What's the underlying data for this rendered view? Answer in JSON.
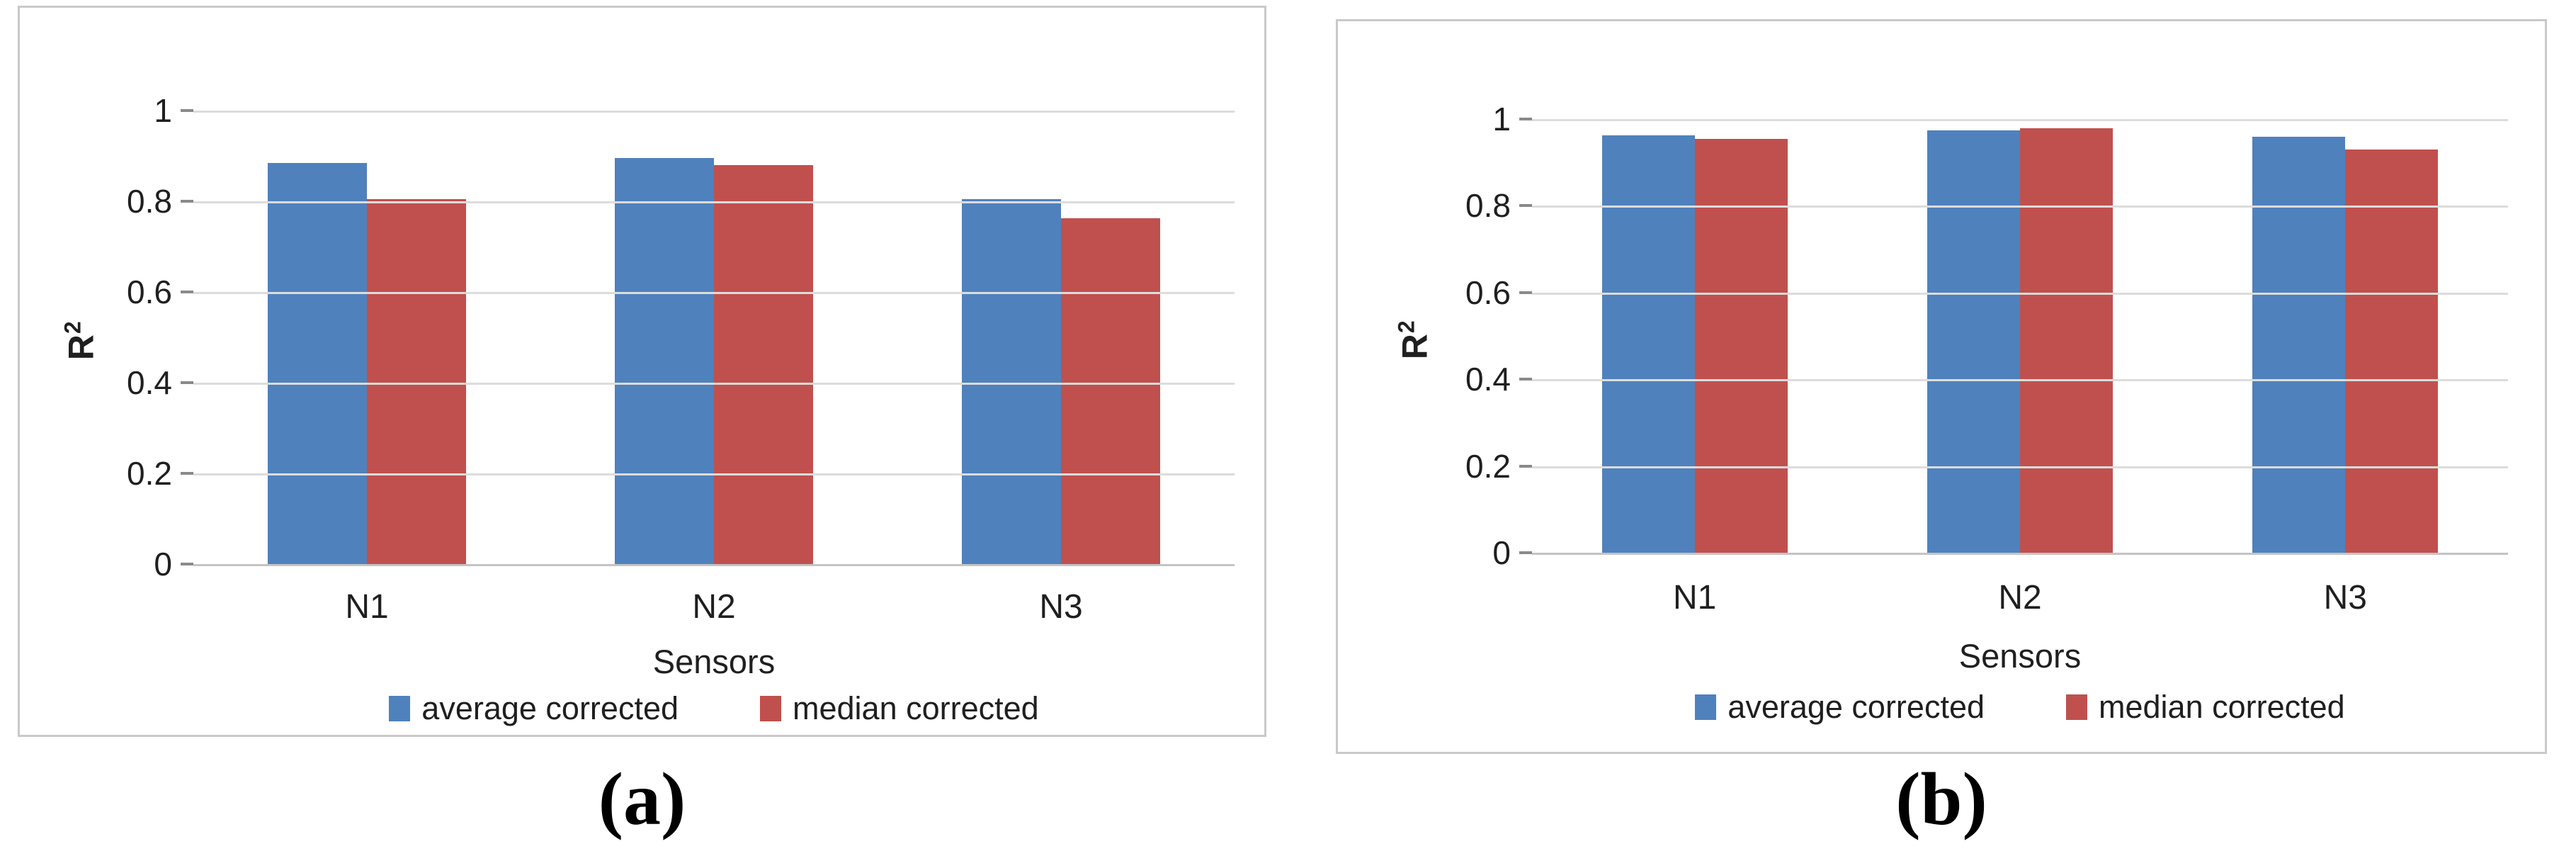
{
  "figure": {
    "captions": [
      "(a)",
      "(b)"
    ]
  },
  "colors": {
    "series_blue": "#4F81BD",
    "series_red": "#C0504D",
    "gridline": "#DCDCDC",
    "axis_line": "#C4C4C4",
    "panel_border": "#C9C9C9",
    "text": "#1F1F1F"
  },
  "chart_data": [
    {
      "type": "bar",
      "panel": "a",
      "title": "",
      "xlabel": "Sensors",
      "ylabel": "R²",
      "ylabel_base": "R",
      "ylabel_sup": "2",
      "ylim": [
        0,
        1
      ],
      "grid": true,
      "legend_position": "bottom",
      "y_ticks": [
        "1",
        "0.8",
        "0.6",
        "0.4",
        "0.2",
        "0"
      ],
      "categories": [
        "N1",
        "N2",
        "N3"
      ],
      "series": [
        {
          "name": "average corrected",
          "color": "#4F81BD",
          "values": [
            0.885,
            0.895,
            0.805
          ]
        },
        {
          "name": "median corrected",
          "color": "#C0504D",
          "values": [
            0.805,
            0.88,
            0.762
          ]
        }
      ]
    },
    {
      "type": "bar",
      "panel": "b",
      "title": "",
      "xlabel": "Sensors",
      "ylabel": "R²",
      "ylabel_base": "R",
      "ylabel_sup": "2",
      "ylim": [
        0,
        1
      ],
      "grid": true,
      "legend_position": "bottom",
      "y_ticks": [
        "1",
        "0.8",
        "0.6",
        "0.4",
        "0.2",
        "0"
      ],
      "categories": [
        "N1",
        "N2",
        "N3"
      ],
      "series": [
        {
          "name": "average corrected",
          "color": "#4F81BD",
          "values": [
            0.963,
            0.974,
            0.959
          ]
        },
        {
          "name": "median corrected",
          "color": "#C0504D",
          "values": [
            0.954,
            0.979,
            0.93
          ]
        }
      ]
    }
  ]
}
